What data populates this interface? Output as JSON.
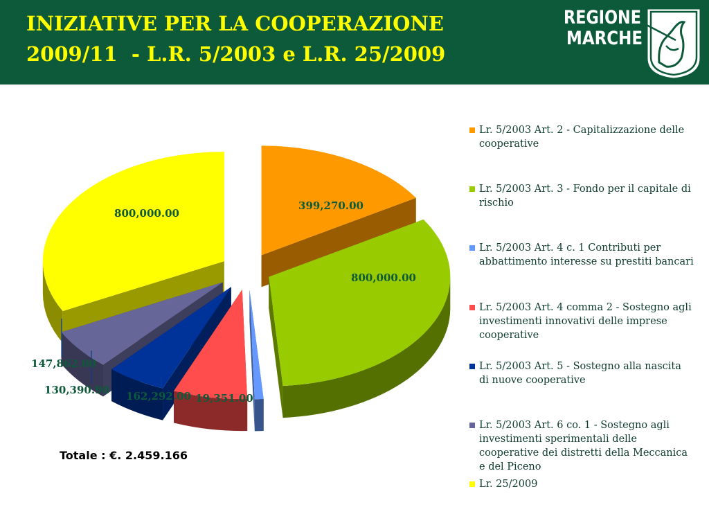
{
  "header": {
    "title": "INIZIATIVE PER LA COOPERAZIONE\n2009/11  - L.R. 5/2003 e L.R. 25/2009",
    "logo_text_line1": "REGIONE",
    "logo_text_line2": "MARCHE"
  },
  "colors": {
    "header_bg": "#0d5a3a",
    "title": "#ffff00",
    "value_label": "#0d5a3a"
  },
  "chart_data": {
    "type": "pie",
    "style": "3d-exploded",
    "legend_position": "right",
    "slices": [
      {
        "name": "Lr. 5/2003 Art. 2 - Capitalizzazione delle cooperative",
        "value": 399270.0,
        "label": "399,270.00",
        "color": "#ff9900"
      },
      {
        "name": "Lr. 5/2003 Art. 3 - Fondo per il capitale di rischio",
        "value": 800000.0,
        "label": "800,000.00",
        "color": "#99cc00"
      },
      {
        "name": "Lr. 5/2003 Art. 4 c. 1 Contributi per abbattimento  interesse su prestiti bancari",
        "value": 19351.0,
        "label": "19,351.00",
        "color": "#6699ff"
      },
      {
        "name": "Lr. 5/2003 Art. 4 comma 2 - Sostegno agli investimenti innovativi delle imprese cooperative",
        "value": 162292.0,
        "label": "162,292.00",
        "color": "#ff4d4d"
      },
      {
        "name": "Lr. 5/2003 Art. 5 - Sostegno alla nascita di nuove cooperative",
        "value": 130390.9,
        "label": "130,390.90",
        "color": "#003399"
      },
      {
        "name": "Lr. 5/2003 Art. 6 co. 1 - Sostegno agli investimenti sperimentali delle cooperative dei distretti della Meccanica e del Piceno",
        "value": 147862.0,
        "label": "147,862.00",
        "color": "#666699"
      },
      {
        "name": "Lr. 25/2009",
        "value": 800000.0,
        "label": "800,000.00",
        "color": "#ffff00"
      }
    ]
  },
  "footer": {
    "total": "Totale : €. 2.459.166"
  }
}
